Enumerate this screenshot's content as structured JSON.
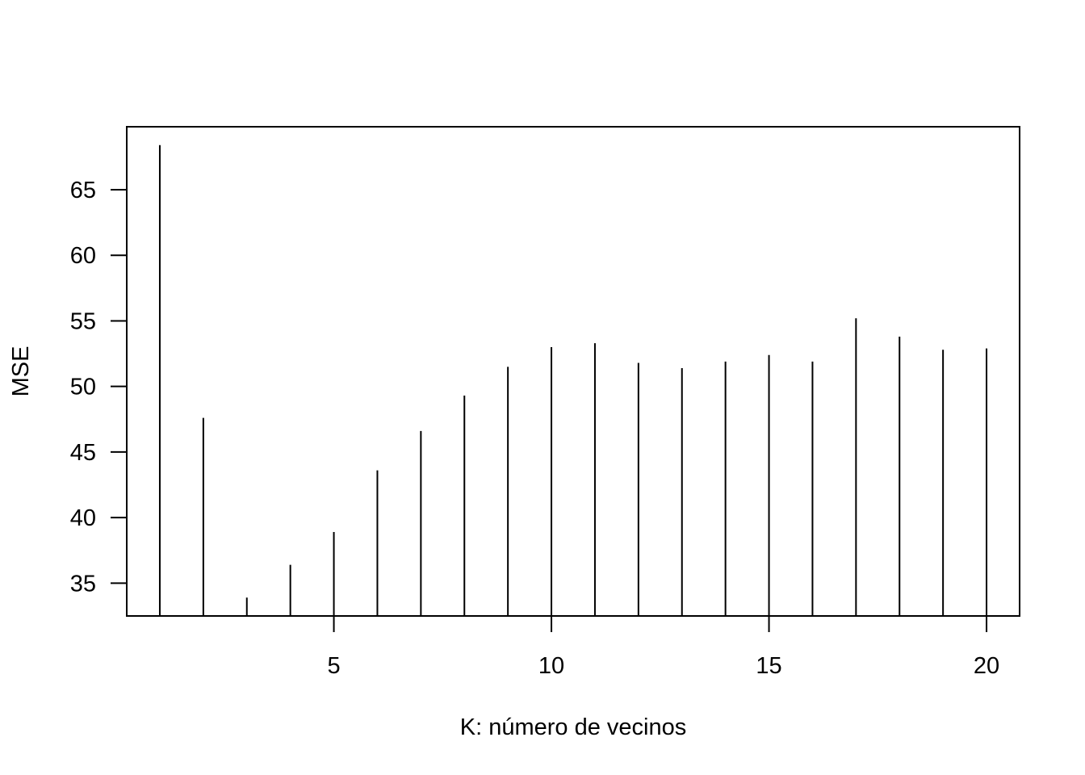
{
  "chart_data": {
    "type": "bar",
    "style": "vertical-spikes",
    "x": [
      1,
      2,
      3,
      4,
      5,
      6,
      7,
      8,
      9,
      10,
      11,
      12,
      13,
      14,
      15,
      16,
      17,
      18,
      19,
      20
    ],
    "values": [
      68.4,
      47.6,
      33.9,
      36.4,
      38.9,
      43.6,
      46.6,
      49.3,
      51.5,
      53.0,
      53.3,
      51.8,
      51.4,
      51.9,
      52.4,
      51.9,
      55.2,
      53.8,
      52.8,
      52.9
    ],
    "title": "",
    "xlabel": "K: número de vecinos",
    "ylabel": "MSE",
    "xlim": [
      0.24,
      20.76
    ],
    "ylim": [
      32.5,
      69.8
    ],
    "xticks": [
      5,
      10,
      15,
      20
    ],
    "yticks": [
      35,
      40,
      45,
      50,
      55,
      60,
      65
    ],
    "grid": false,
    "legend": "none",
    "color": "#000000"
  }
}
